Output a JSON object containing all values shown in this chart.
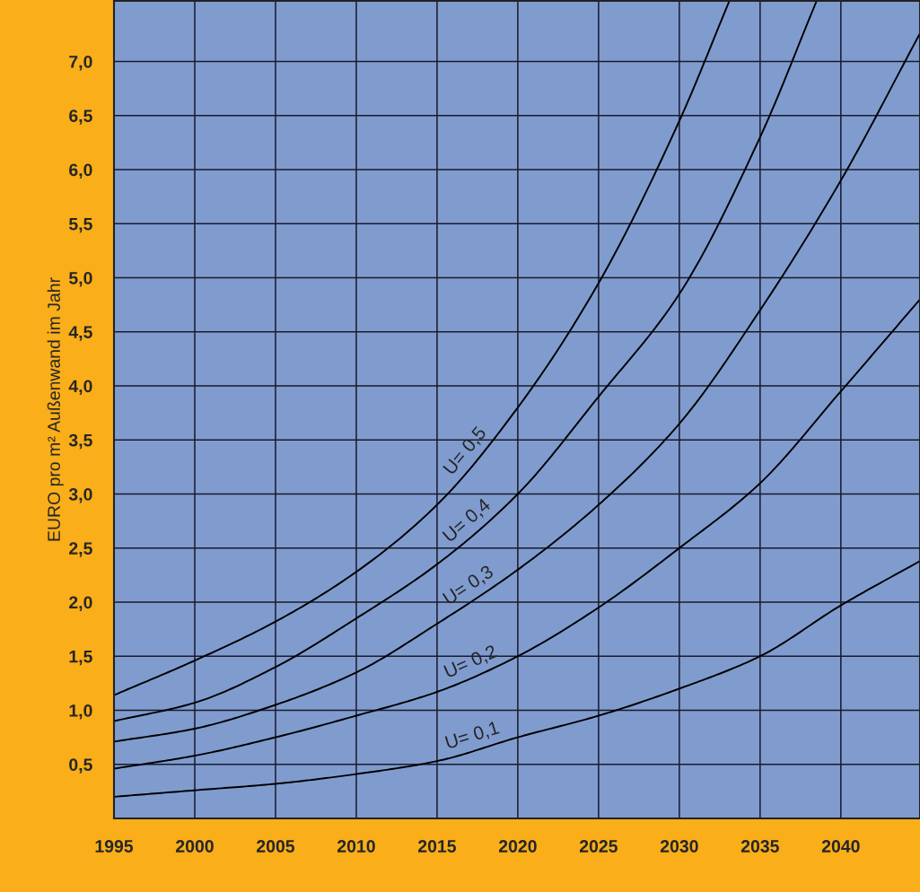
{
  "chart_data": {
    "type": "line",
    "ylabel": "EURO pro m² Außenwand im Jahr",
    "x": [
      1995,
      2000,
      2005,
      2010,
      2015,
      2020,
      2025,
      2030,
      2035,
      2040,
      2044.9
    ],
    "series": [
      {
        "name": "U= 0,5",
        "color": "#000000",
        "x": [
          1995,
          2000,
          2005,
          2010,
          2015,
          2020,
          2025,
          2030,
          2033.1
        ],
        "values": [
          1.14,
          1.46,
          1.82,
          2.28,
          2.9,
          3.8,
          4.95,
          6.45,
          7.56
        ]
      },
      {
        "name": "U= 0,4",
        "color": "#000000",
        "x": [
          1995,
          2000,
          2005,
          2010,
          2015,
          2020,
          2025,
          2030,
          2035,
          2038.5
        ],
        "values": [
          0.9,
          1.07,
          1.4,
          1.85,
          2.35,
          3.0,
          3.9,
          4.85,
          6.3,
          7.56
        ]
      },
      {
        "name": "U= 0,3",
        "color": "#000000",
        "values": [
          0.71,
          0.83,
          1.05,
          1.35,
          1.8,
          2.3,
          2.9,
          3.65,
          4.7,
          5.9,
          7.26
        ]
      },
      {
        "name": "U= 0,2",
        "color": "#000000",
        "values": [
          0.46,
          0.58,
          0.75,
          0.95,
          1.17,
          1.5,
          1.95,
          2.5,
          3.1,
          3.95,
          4.8
        ]
      },
      {
        "name": "U= 0,1",
        "color": "#000000",
        "values": [
          0.2,
          0.26,
          0.32,
          0.41,
          0.53,
          0.75,
          0.95,
          1.2,
          1.5,
          1.97,
          2.38
        ]
      }
    ],
    "xlim": [
      1995,
      2044.9
    ],
    "ylim": [
      0,
      7.56
    ],
    "xticks": [
      1995,
      2000,
      2005,
      2010,
      2015,
      2020,
      2025,
      2030,
      2035,
      2040
    ],
    "yticks": [
      {
        "value": 0.5,
        "label": "0,5"
      },
      {
        "value": 1.0,
        "label": "1,0"
      },
      {
        "value": 1.5,
        "label": "1,5"
      },
      {
        "value": 2.0,
        "label": "2,0"
      },
      {
        "value": 2.5,
        "label": "2,5"
      },
      {
        "value": 3.0,
        "label": "3,0"
      },
      {
        "value": 3.5,
        "label": "3,5"
      },
      {
        "value": 4.0,
        "label": "4,0"
      },
      {
        "value": 4.5,
        "label": "4,5"
      },
      {
        "value": 5.0,
        "label": "5,0"
      },
      {
        "value": 5.5,
        "label": "5,5"
      },
      {
        "value": 6.0,
        "label": "6,0"
      },
      {
        "value": 6.5,
        "label": "6,5"
      },
      {
        "value": 7.0,
        "label": "7,0"
      }
    ],
    "grid": true,
    "marker": "none",
    "line_style": "solid"
  }
}
